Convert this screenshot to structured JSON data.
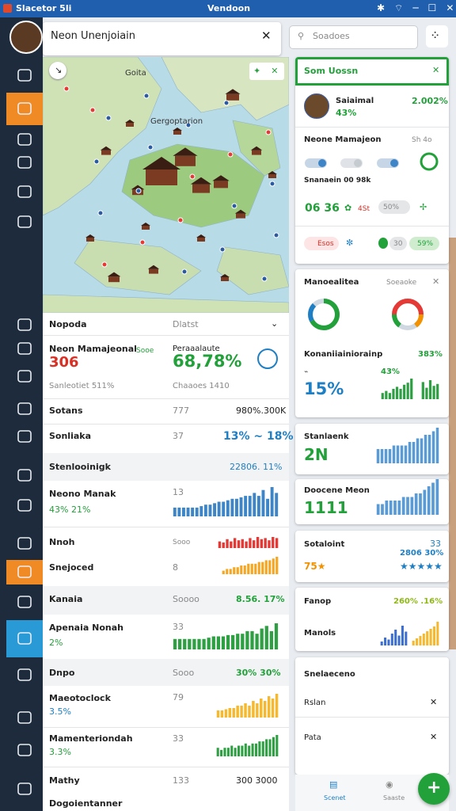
{
  "window": {
    "title": "Slacetor 5li",
    "center": "Vendoon"
  },
  "tab": {
    "title": "Neon Unenjoiain"
  },
  "search": {
    "placeholder": "Soadoes"
  },
  "map": {
    "labels": [
      "Goita",
      "Gergoptarion"
    ]
  },
  "list": {
    "header": [
      "Nopoda",
      "Dlatst"
    ],
    "summary": {
      "title": "Neon Mamajeonal",
      "value": "306",
      "tag": "Sooe",
      "right_title": "Peraaalaute",
      "right_value": "68,78%",
      "foot_left": "Sanleotiet 511%",
      "foot_right": "Chaaoes 1410"
    },
    "rows": [
      {
        "label": "Sotans",
        "num": "777",
        "value": "980%.300K"
      },
      {
        "label": "Sonliaka",
        "num": "37",
        "value": "13% ~ 18%"
      },
      {
        "label": "Stenlooinigk",
        "value": "22806. 11%"
      },
      {
        "label": "Neono Manak",
        "sub": "43% 21%",
        "num": "13",
        "bars": {
          "color": "#3d85c6",
          "values": [
            3,
            3,
            3,
            3,
            3,
            3,
            3.5,
            4,
            4,
            4.5,
            5,
            5,
            5.5,
            6,
            6,
            6.5,
            7,
            7,
            8,
            7,
            9,
            6,
            10,
            8
          ]
        }
      },
      {
        "label": "Nnoh",
        "num": "Sooo",
        "bars": {
          "color": "#e53935",
          "values": [
            6,
            5,
            8,
            6,
            9,
            7,
            8,
            6,
            9,
            7,
            10,
            8,
            9,
            7,
            10,
            9
          ]
        }
      },
      {
        "label": "Snejoced",
        "num": "8",
        "bars": {
          "color": "#f5a623",
          "values": [
            2,
            3,
            3,
            4,
            4,
            5,
            5,
            6,
            6,
            6,
            7,
            7,
            8,
            8,
            9,
            10
          ]
        }
      },
      {
        "label": "Kanaia",
        "num": "Soooo",
        "value": "8.56. 17%"
      },
      {
        "label": "Apenaia Nonah",
        "sub": "2%",
        "num": "33",
        "bars": {
          "color": "#2ea043",
          "values": [
            4,
            4,
            4,
            4,
            4,
            4,
            4,
            4.5,
            5,
            5,
            5,
            5.5,
            5.5,
            6,
            6,
            7,
            7,
            6,
            8,
            9,
            7,
            10
          ]
        }
      },
      {
        "label": "Dnpo",
        "num": "Sooo",
        "value": "30% 30%"
      },
      {
        "label": "Maeotoclock",
        "sub": "3.5%",
        "num": "79",
        "bars": {
          "color": "#f5b82e",
          "values": [
            3,
            3,
            3.5,
            4,
            4,
            5,
            5,
            6,
            5,
            7,
            6,
            8,
            7,
            9,
            8,
            10
          ]
        }
      },
      {
        "label": "Mamenteriondah",
        "sub": "3.3%",
        "num": "33",
        "bars": {
          "color": "#2ea043",
          "values": [
            4,
            3,
            4,
            4,
            5,
            4,
            5,
            5,
            6,
            5,
            6,
            6,
            7,
            7,
            8,
            8,
            9,
            10
          ]
        }
      },
      {
        "label": "Mathy",
        "num": "133",
        "value": "300 3000"
      },
      {
        "label": "Dogoientanner"
      }
    ]
  },
  "panel": {
    "header": "Som Uossn",
    "user": {
      "name": "Saiaimal",
      "sub": "43%",
      "value": "2.002%"
    },
    "section": {
      "title": "Neone Mamajeon",
      "aside": "Sh 4o",
      "note": "Snanaein 00 98k",
      "stat": "06 36",
      "chip_a": "4St",
      "chip_b": "50%"
    },
    "chips": [
      "Esos",
      "30",
      "59%"
    ]
  },
  "cards": [
    {
      "title": "Manoealitea",
      "aside": "Soeaoke",
      "label": "Konaniiainiorainp",
      "label_value": "383%",
      "big": "15%",
      "small": "43%",
      "bars": [
        {
          "color": "#2ea043",
          "values": [
            3,
            4,
            3,
            5,
            6,
            5,
            7,
            8,
            10
          ]
        },
        {
          "color": "#2ea043",
          "values": [
            9,
            6,
            10,
            7,
            8
          ]
        }
      ]
    },
    {
      "title": "Stanlaenk",
      "big": "2N",
      "bars": [
        {
          "color": "#5b9bd5",
          "values": [
            4,
            4,
            4,
            4,
            5,
            5,
            5,
            5,
            6,
            6,
            7,
            7,
            8,
            8,
            9,
            10
          ]
        }
      ]
    },
    {
      "title": "Doocene Meon",
      "big": "1111",
      "bars": [
        {
          "color": "#5b9bd5",
          "values": [
            3,
            3,
            4,
            4,
            4,
            4,
            5,
            5,
            5,
            6,
            6,
            7,
            8,
            9,
            10
          ]
        }
      ]
    },
    {
      "title": "Sotaloint",
      "aside": "33",
      "value": "2806 30%",
      "big": "75★",
      "stars": "★★★★★"
    },
    {
      "title": "Fanop",
      "value": "260% .16%",
      "label": "Manols",
      "bars": [
        {
          "color": "#3d6fd0",
          "values": [
            2,
            4,
            3,
            6,
            8,
            5,
            10,
            7
          ]
        },
        {
          "color": "#f5b82e",
          "values": [
            2,
            3,
            4,
            5,
            6,
            7,
            8,
            10
          ]
        }
      ]
    },
    {
      "title": "Snelaeceno",
      "items": [
        "Rslan",
        "Pata"
      ]
    }
  ],
  "nav": [
    "Scenet",
    "Saaste"
  ]
}
